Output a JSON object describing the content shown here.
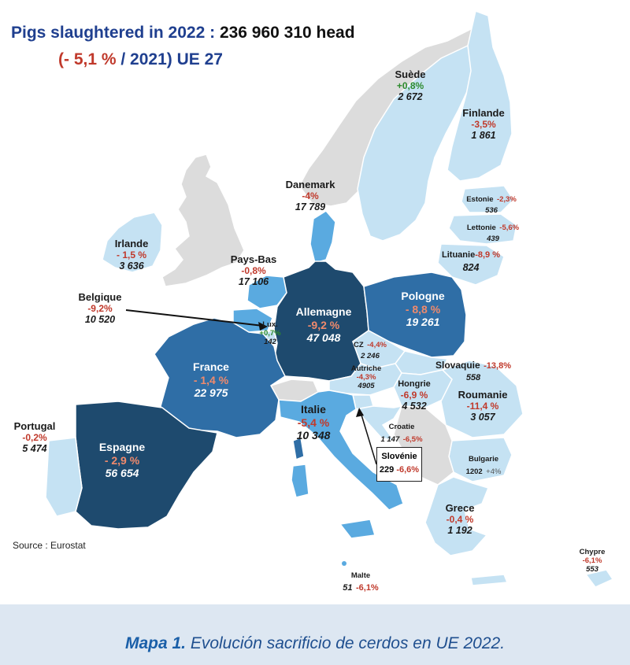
{
  "title": {
    "line1_prefix": "Pigs slaughtered in 2022 :",
    "line1_total": "236 960 310 head",
    "line2_open": "(",
    "line2_change": "- 5,1 %",
    "line2_rest": "/ 2021) UE 27"
  },
  "source": "Source : Eurostat",
  "caption": {
    "label": "Mapa 1.",
    "text": "Evolución sacrificio de cerdos en UE 2022."
  },
  "legend_colors": {
    "very_high": "#1e4a6e",
    "high": "#2f6ea6",
    "medium": "#5aaae0",
    "low": "#c5e2f3",
    "non_eu": "#dcdcdc"
  },
  "countries": {
    "suede": {
      "name": "Suède",
      "change": "+0,8%",
      "value": "2 672"
    },
    "finlande": {
      "name": "Finlande",
      "change": "-3,5%",
      "value": "1 861"
    },
    "estonie": {
      "name": "Estonie",
      "change": "-2,3%",
      "value": "536"
    },
    "lettonie": {
      "name": "Lettonie",
      "change": "-5,6%",
      "value": "439"
    },
    "lituanie": {
      "name": "Lituanie",
      "change": "-8,9 %",
      "value": "824"
    },
    "danemark": {
      "name": "Danemark",
      "change": "-4%",
      "value": "17 789"
    },
    "irlande": {
      "name": "Irlande",
      "change": "- 1,5 %",
      "value": "3 636"
    },
    "paysbas": {
      "name": "Pays-Bas",
      "change": "-0,8%",
      "value": "17 106"
    },
    "belgique": {
      "name": "Belgique",
      "change": "-9,2%",
      "value": "10 520"
    },
    "lux": {
      "name": "Lux.",
      "change": "+0,7%",
      "value": "142"
    },
    "allemagne": {
      "name": "Allemagne",
      "change": "-9,2 %",
      "value": "47 048"
    },
    "pologne": {
      "name": "Pologne",
      "change": "- 8,8 %",
      "value": "19 261"
    },
    "cz": {
      "name": "CZ",
      "change": "-4,4%",
      "value": "2 246"
    },
    "slovaquie": {
      "name": "Slovaquie",
      "change": "-13,8%",
      "value": "558"
    },
    "autriche": {
      "name": "Autriche",
      "change": "-4,3%",
      "value": "4905"
    },
    "hongrie": {
      "name": "Hongrie",
      "change": "-6,9 %",
      "value": "4 532"
    },
    "roumanie": {
      "name": "Roumanie",
      "change": "-11,4 %",
      "value": "3 057"
    },
    "france": {
      "name": "France",
      "change": "- 1,4 %",
      "value": "22 975"
    },
    "italie": {
      "name": "Italie",
      "change": "-5,4 %",
      "value": "10 348"
    },
    "croatie": {
      "name": "Croatie",
      "change": "-6,5%",
      "value": "1 147"
    },
    "slovenie": {
      "name": "Slovénie",
      "change": "-6,6%",
      "value": "229"
    },
    "bulgarie": {
      "name": "Bulgarie",
      "change": "+4%",
      "value": "1202"
    },
    "portugal": {
      "name": "Portugal",
      "change": "-0,2%",
      "value": "5 474"
    },
    "espagne": {
      "name": "Espagne",
      "change": "- 2,9 %",
      "value": "56 654"
    },
    "grece": {
      "name": "Grece",
      "change": "-0,4 %",
      "value": "1 192"
    },
    "malte": {
      "name": "Malte",
      "change": "-6,1%",
      "value": "51"
    },
    "chypre": {
      "name": "Chypre",
      "change": "-6,1%",
      "value": "553"
    }
  }
}
